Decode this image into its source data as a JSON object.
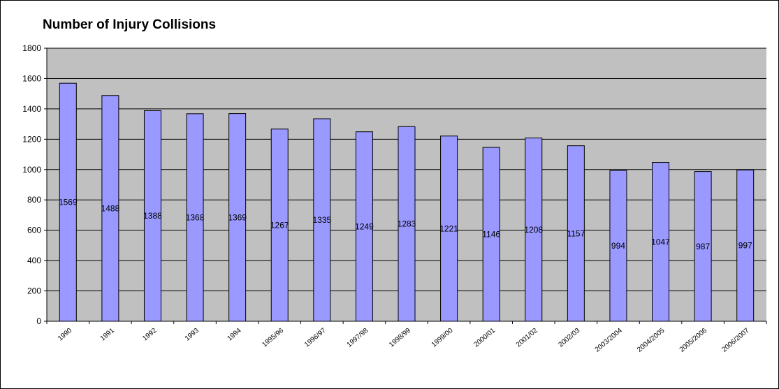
{
  "chart_data": {
    "type": "bar",
    "title": "Number of Injury Collisions",
    "xlabel": "",
    "ylabel": "",
    "categories": [
      "1990",
      "1991",
      "1992",
      "1993",
      "1994",
      "1995/96",
      "1996/97",
      "1997/98",
      "1998/99",
      "1999/00",
      "2000/01",
      "2001/02",
      "2002/03",
      "2003/2004",
      "2004/2005",
      "2005/2006",
      "2006/2007"
    ],
    "values": [
      1569,
      1488,
      1388,
      1368,
      1369,
      1267,
      1335,
      1249,
      1283,
      1221,
      1146,
      1208,
      1157,
      994,
      1047,
      987,
      997
    ],
    "ylim": [
      0,
      1800
    ],
    "yticks": [
      0,
      200,
      400,
      600,
      800,
      1000,
      1200,
      1400,
      1600,
      1800
    ],
    "grid": true,
    "legend": "none",
    "colors": {
      "bar_fill": "#9999ff",
      "bar_stroke": "#000000",
      "plot_background": "#c0c0c0",
      "grid": "#000000"
    }
  }
}
